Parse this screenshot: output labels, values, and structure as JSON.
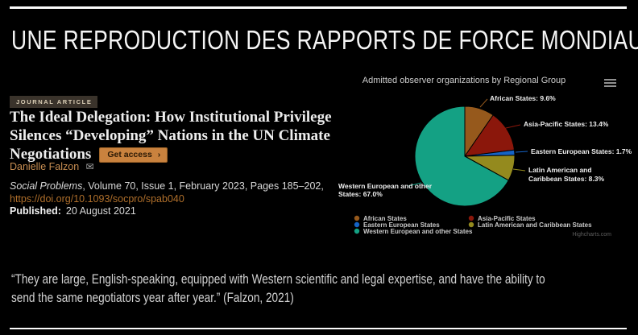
{
  "slide": {
    "title": "UNE REPRODUCTION DES RAPPORTS DE FORCE MONDIAUX",
    "quote": "“They are large, English-speaking, equipped with Western scientific and legal expertise, and have the ability to\nsend the same negotiators year after year.” (Falzon, 2021)"
  },
  "article": {
    "badge": "JOURNAL ARTICLE",
    "title": "The Ideal Delegation: How Institutional Privilege\nSilences “Developing” Nations in the UN Climate\nNegotiations",
    "get_access_label": "Get access",
    "get_access_chevron": "›",
    "author": "Danielle Falzon",
    "email_icon": "✉",
    "journal_italic": "Social Problems",
    "citation_rest": ", Volume 70, Issue 1, February 2023, Pages 185–202,",
    "doi": "https://doi.org/10.1093/socpro/spab040",
    "published_label": "Published:",
    "published_date": "20 August 2021"
  },
  "chart": {
    "title": "Admitted observer organizations by Regional Group",
    "credits": "Highcharts.com",
    "menu_icon": "hamburger-icon"
  },
  "chart_data": {
    "type": "pie",
    "title": "Admitted observer organizations by Regional Group",
    "unit": "%",
    "start_angle_deg": 0,
    "direction": "clockwise",
    "legend_position": "bottom",
    "slices": [
      {
        "name": "African States",
        "value": 9.6,
        "color": "#96591C",
        "label_lines": [
          "African States: 9.6%"
        ]
      },
      {
        "name": "Asia-Pacific States",
        "value": 13.4,
        "color": "#8B170B",
        "label_lines": [
          "Asia-Pacific States: 13.4%"
        ]
      },
      {
        "name": "Eastern European States",
        "value": 1.7,
        "color": "#1563C6",
        "label_lines": [
          "Eastern European States: 1.7%"
        ]
      },
      {
        "name": "Latin American and Caribbean States",
        "value": 8.3,
        "color": "#948A1E",
        "label_lines": [
          "Latin American and",
          "Caribbean States: 8.3%"
        ]
      },
      {
        "name": "Western European and other States",
        "value": 67.0,
        "color": "#14A184",
        "label_lines": [
          "Western European and other",
          "States: 67.0%"
        ]
      }
    ]
  },
  "colors": {
    "background": "#000000",
    "accent_line": "#FAFAFA",
    "badge_bg": "#3A332B",
    "badge_text": "#D9CDB5",
    "button_bg": "#C9823E",
    "button_text": "#2A1804",
    "author_link": "#C88E52",
    "doi_link": "#AF6F2B"
  }
}
